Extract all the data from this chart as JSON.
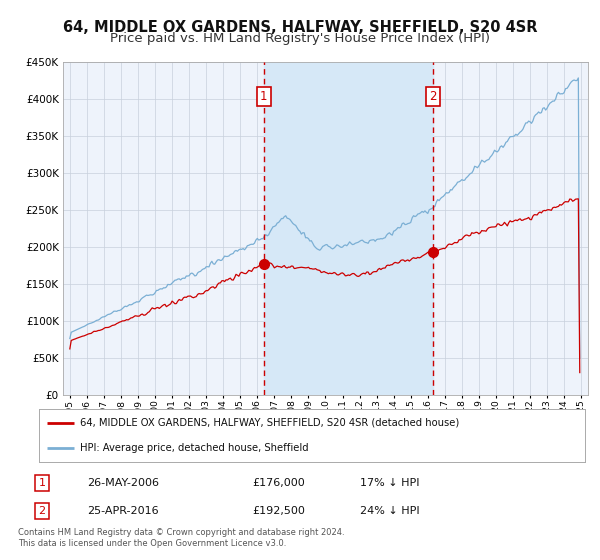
{
  "title1": "64, MIDDLE OX GARDENS, HALFWAY, SHEFFIELD, S20 4SR",
  "title2": "Price paid vs. HM Land Registry's House Price Index (HPI)",
  "legend_red": "64, MIDDLE OX GARDENS, HALFWAY, SHEFFIELD, S20 4SR (detached house)",
  "legend_blue": "HPI: Average price, detached house, Sheffield",
  "annotation1_date": "26-MAY-2006",
  "annotation1_price": "£176,000",
  "annotation1_hpi": "17% ↓ HPI",
  "annotation2_date": "25-APR-2016",
  "annotation2_price": "£192,500",
  "annotation2_hpi": "24% ↓ HPI",
  "sale1_year": 2006.38,
  "sale1_value": 176000,
  "sale2_year": 2016.29,
  "sale2_value": 192500,
  "ylim": [
    0,
    450000
  ],
  "xlim_start": 1994.6,
  "xlim_end": 2025.4,
  "footer": "Contains HM Land Registry data © Crown copyright and database right 2024.\nThis data is licensed under the Open Government Licence v3.0.",
  "background_color": "#ffffff",
  "plot_bg_color": "#eef3fb",
  "shade_color": "#d6e8f7",
  "red_line_color": "#cc0000",
  "blue_line_color": "#7bafd4",
  "grid_color": "#c8d0dc",
  "vline_color": "#cc0000",
  "title_fontsize": 10.5,
  "subtitle_fontsize": 9.5
}
